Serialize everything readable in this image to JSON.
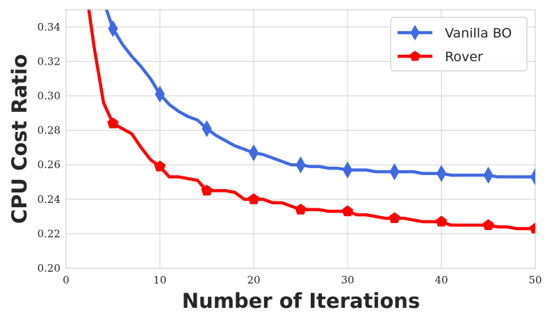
{
  "chart_data": {
    "type": "line",
    "xlabel": "Number of Iterations",
    "ylabel": "CPU Cost Ratio",
    "xlim": [
      0,
      50
    ],
    "ylim": [
      0.2,
      0.35
    ],
    "xticks": [
      0,
      10,
      20,
      30,
      40,
      50
    ],
    "yticks": [
      0.2,
      0.22,
      0.24,
      0.26,
      0.28,
      0.3,
      0.32,
      0.34
    ],
    "grid": true,
    "legend_position": "top-right",
    "series": [
      {
        "name": "Vanilla BO",
        "color": "#4169e1",
        "marker": "diamond",
        "x": [
          4,
          5,
          6,
          7,
          8,
          9,
          10,
          11,
          12,
          13,
          14,
          15,
          16,
          17,
          18,
          19,
          20,
          21,
          22,
          23,
          24,
          25,
          26,
          27,
          28,
          29,
          30,
          31,
          32,
          33,
          34,
          35,
          36,
          37,
          38,
          39,
          40,
          41,
          42,
          43,
          44,
          45,
          46,
          47,
          48,
          49,
          50
        ],
        "y": [
          0.355,
          0.339,
          0.33,
          0.323,
          0.317,
          0.31,
          0.301,
          0.295,
          0.291,
          0.288,
          0.286,
          0.281,
          0.277,
          0.274,
          0.271,
          0.269,
          0.267,
          0.266,
          0.264,
          0.262,
          0.26,
          0.26,
          0.259,
          0.259,
          0.258,
          0.258,
          0.257,
          0.257,
          0.257,
          0.256,
          0.256,
          0.256,
          0.256,
          0.256,
          0.255,
          0.255,
          0.255,
          0.254,
          0.254,
          0.254,
          0.254,
          0.254,
          0.253,
          0.253,
          0.253,
          0.253,
          0.253
        ],
        "marker_x": [
          5,
          10,
          15,
          20,
          25,
          30,
          35,
          40,
          45,
          50
        ]
      },
      {
        "name": "Rover",
        "color": "#ff0000",
        "marker": "pentagon",
        "x": [
          2.3,
          3,
          4,
          5,
          6,
          7,
          8,
          9,
          10,
          11,
          12,
          13,
          14,
          15,
          16,
          17,
          18,
          19,
          20,
          21,
          22,
          23,
          24,
          25,
          26,
          27,
          28,
          29,
          30,
          31,
          32,
          33,
          34,
          35,
          36,
          37,
          38,
          39,
          40,
          41,
          42,
          43,
          44,
          45,
          46,
          47,
          48,
          49,
          50
        ],
        "y": [
          0.355,
          0.328,
          0.296,
          0.284,
          0.281,
          0.278,
          0.27,
          0.263,
          0.259,
          0.253,
          0.253,
          0.252,
          0.251,
          0.245,
          0.245,
          0.245,
          0.244,
          0.24,
          0.24,
          0.24,
          0.238,
          0.238,
          0.236,
          0.234,
          0.234,
          0.234,
          0.233,
          0.233,
          0.233,
          0.231,
          0.231,
          0.23,
          0.229,
          0.229,
          0.229,
          0.228,
          0.227,
          0.227,
          0.227,
          0.225,
          0.225,
          0.225,
          0.225,
          0.225,
          0.224,
          0.224,
          0.223,
          0.223,
          0.223
        ],
        "marker_x": [
          5,
          10,
          15,
          20,
          25,
          30,
          35,
          40,
          45,
          50
        ]
      }
    ]
  }
}
